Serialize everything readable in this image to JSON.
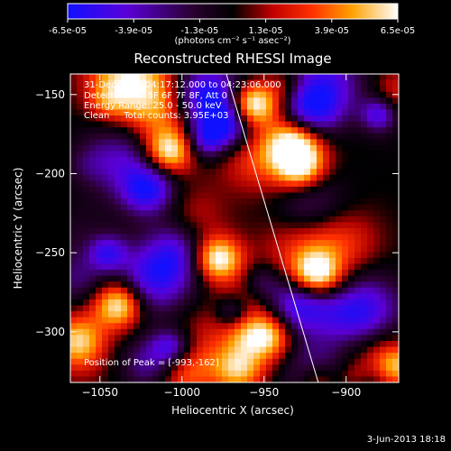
{
  "colors": {
    "background": "#000000",
    "foreground": "#ffffff",
    "limb_line": "#ffffff"
  },
  "colorbar": {
    "colormap": "blue-black-red-yellow-white",
    "ticks": [
      "-6.5e-05",
      "-3.9e-05",
      "-1.3e-05",
      "1.3e-05",
      "3.9e-05",
      "6.5e-05"
    ],
    "range": [
      -6.5e-05,
      6.5e-05
    ],
    "units": "(photons cm⁻² s⁻¹ asec⁻²)"
  },
  "chart_data": {
    "type": "heatmap",
    "title": "Reconstructed RHESSI Image",
    "xlabel": "Heliocentric X (arcsec)",
    "ylabel": "Heliocentric Y (arcsec)",
    "xlim": [
      -1068,
      -868
    ],
    "ylim": [
      -332,
      -137
    ],
    "xticks": [
      -1050,
      -1000,
      -950,
      -900
    ],
    "yticks": [
      -150,
      -200,
      -250,
      -300
    ],
    "grid": false,
    "annotations": {
      "time": "31-Dec-2003 04:17:12.000 to 04:23:06.000",
      "detectors": "Detectors: 4F 5F 6F 7F 8F, Att 0",
      "energy": "Energy Range: 25.0 - 50.0 keV",
      "clean": "Clean     Total counts: 3.95E+03",
      "peak": "Position of Peak = [-993,-162]"
    },
    "limb_line": {
      "x": [
        -973,
        -917
      ],
      "y": [
        -137,
        -332
      ]
    }
  },
  "footer": {
    "date": "3-Jun-2013 18:18"
  }
}
